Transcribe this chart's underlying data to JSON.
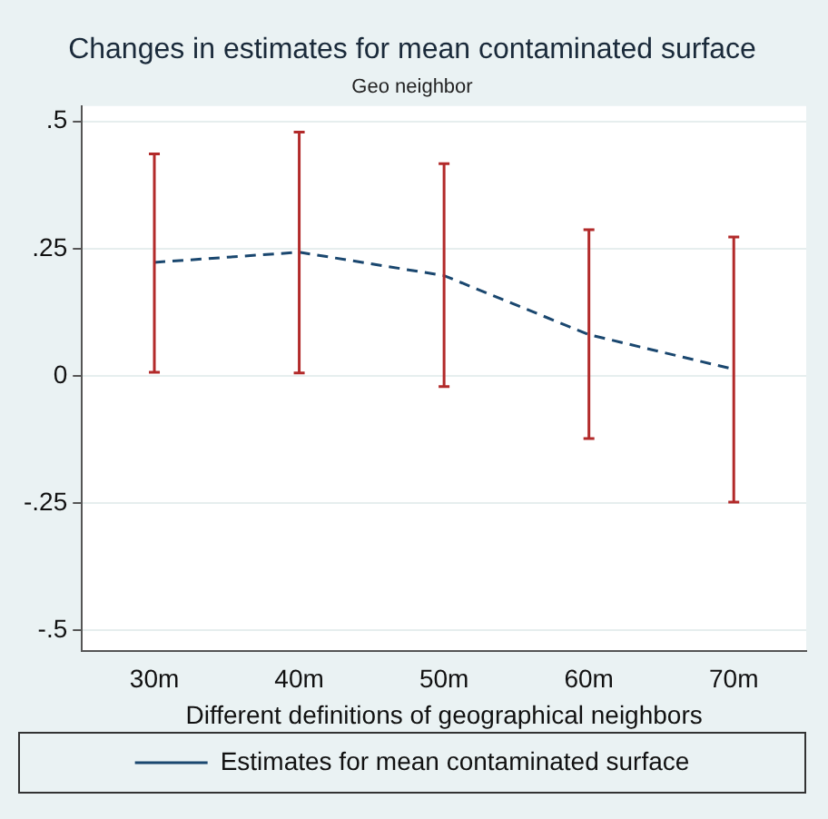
{
  "chart_data": {
    "type": "line",
    "title": "Changes in estimates for mean contaminated surface",
    "subtitle": "Geo neighbor",
    "xlabel": "Different definitions of geographical neighbors",
    "categories": [
      "30m",
      "40m",
      "50m",
      "60m",
      "70m"
    ],
    "series": [
      {
        "name": "Estimates for mean contaminated surface",
        "color": "#1a476f",
        "values": [
          0.223,
          0.243,
          0.197,
          0.081,
          0.013
        ],
        "errors": [
          [
            0.007,
            0.436
          ],
          [
            0.006,
            0.479
          ],
          [
            -0.021,
            0.417
          ],
          [
            -0.123,
            0.287
          ],
          [
            -0.248,
            0.273
          ]
        ]
      }
    ],
    "ylim": [
      -0.54,
      0.53
    ],
    "yticks": [
      {
        "value": -0.5,
        "label": "-.5"
      },
      {
        "value": -0.25,
        "label": "-.25"
      },
      0,
      {
        "value": 0.25,
        "label": ".25"
      },
      {
        "value": 0.5,
        "label": ".5"
      }
    ],
    "grid": "y",
    "legend": "bottom",
    "marker": "none",
    "line_style": "dashed"
  }
}
